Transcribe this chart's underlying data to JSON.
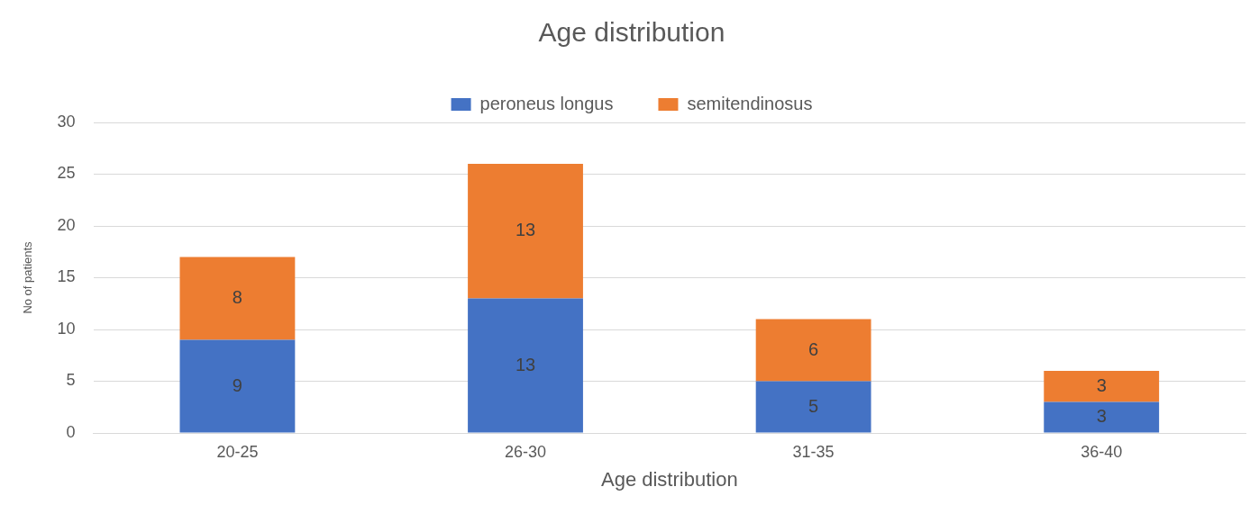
{
  "chart_data": {
    "type": "bar",
    "title": "Age distribution",
    "xlabel": "Age distribution",
    "ylabel": "No of patients",
    "categories": [
      "20-25",
      "26-30",
      "31-35",
      "36-40"
    ],
    "series": [
      {
        "name": "peroneus longus",
        "color": "#4472c4",
        "values": [
          9,
          13,
          5,
          3
        ]
      },
      {
        "name": "semitendinosus",
        "color": "#ed7d31",
        "values": [
          8,
          13,
          6,
          3
        ]
      }
    ],
    "stacked": true,
    "ylim": [
      0,
      30
    ],
    "yticks": [
      0,
      5,
      10,
      15,
      20,
      25,
      30
    ],
    "grid": "y",
    "legend": "top",
    "data_labels": true
  }
}
